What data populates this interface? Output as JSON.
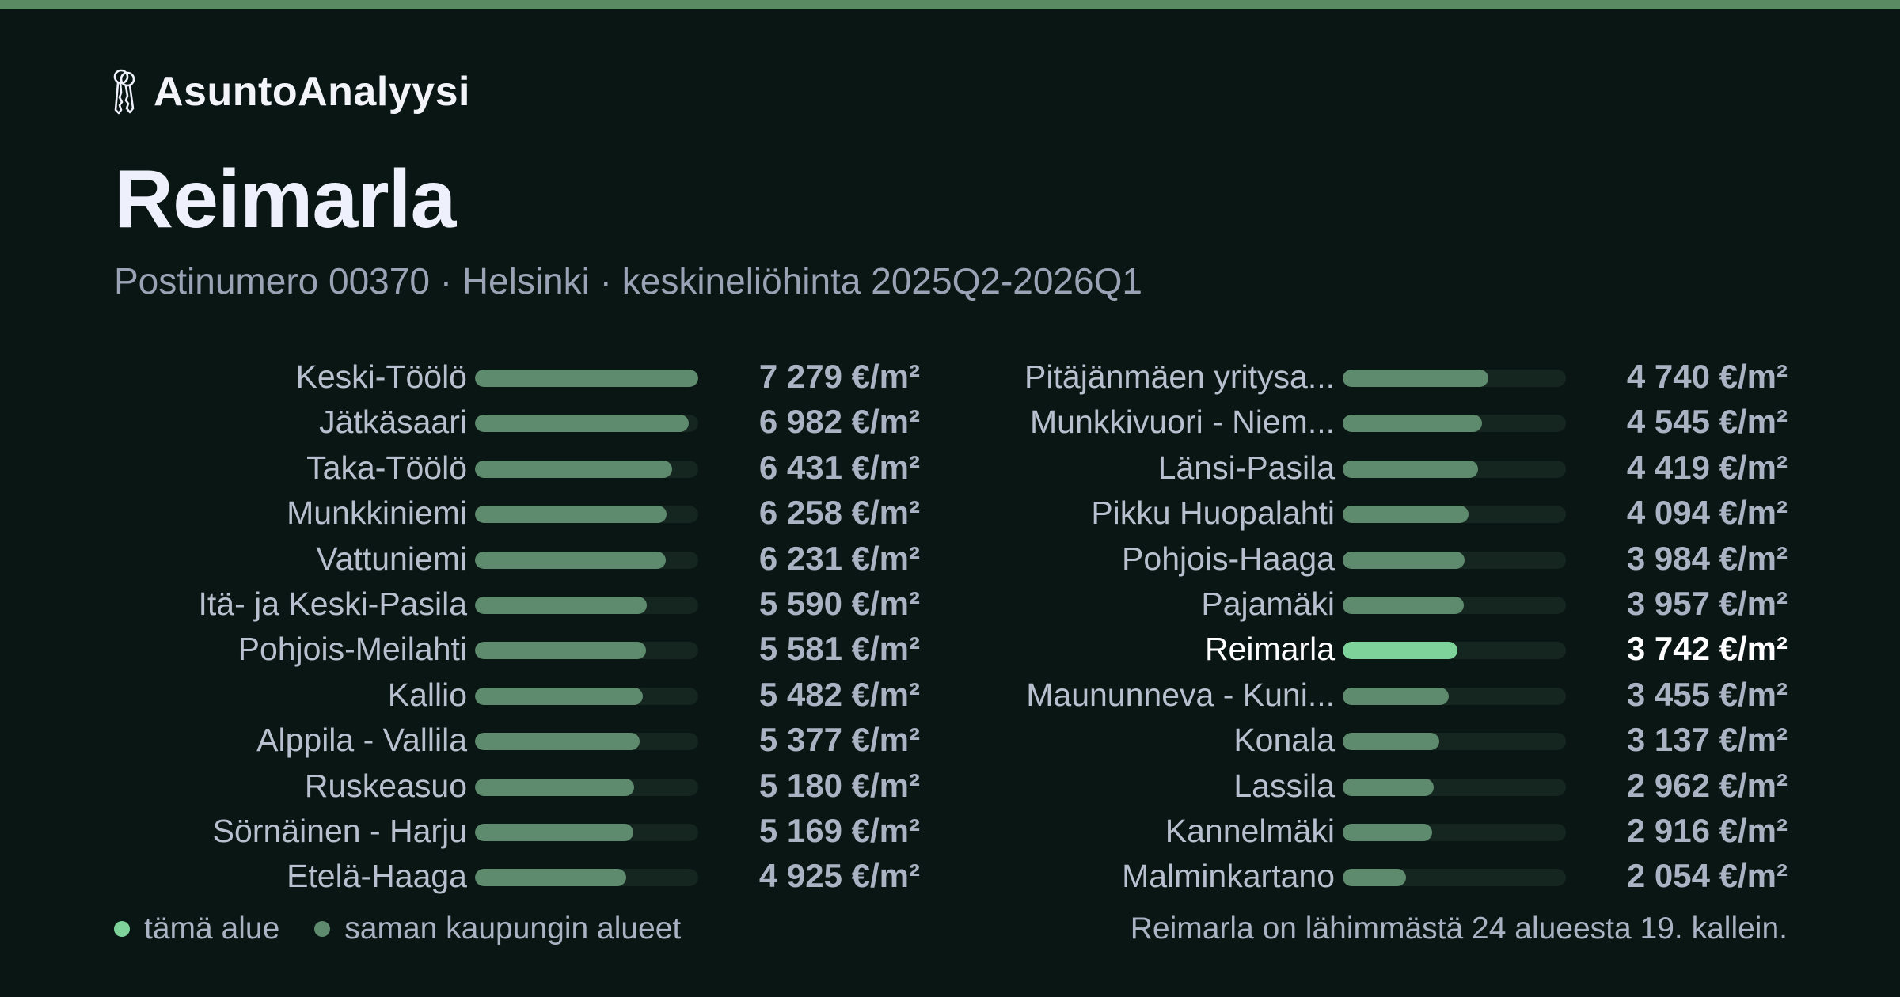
{
  "brand": {
    "name": "AsuntoAnalyysi",
    "icon": "keys-icon"
  },
  "header": {
    "title": "Reimarla",
    "subtitle": "Postinumero 00370 · Helsinki · keskineliöhinta 2025Q2-2026Q1"
  },
  "colors": {
    "background": "#0a1614",
    "accent_bar": "#5a8a62",
    "bar_default": "#5e8a6e",
    "bar_highlight": "#7dd39a",
    "track": "#15251f"
  },
  "legend": {
    "this_area": "tämä alue",
    "this_area_color": "#7dd39a",
    "same_city": "saman kaupungin alueet",
    "same_city_color": "#5e8a6e"
  },
  "footnote": "Reimarla on lähimmästä 24 alueesta 19. kallein.",
  "chart_data": {
    "type": "bar",
    "orientation": "horizontal",
    "unit": "€/m²",
    "xlim": [
      0,
      7279
    ],
    "highlight": "Reimarla",
    "categories": [
      "Keski-Töölö",
      "Jätkäsaari",
      "Taka-Töölö",
      "Munkkiniemi",
      "Vattuniemi",
      "Itä- ja Keski-Pasila",
      "Pohjois-Meilahti",
      "Kallio",
      "Alppila - Vallila",
      "Ruskeasuo",
      "Sörnäinen - Harju",
      "Etelä-Haaga",
      "Pitäjänmäen yritysa...",
      "Munkkivuori - Niem...",
      "Länsi-Pasila",
      "Pikku Huopalahti",
      "Pohjois-Haaga",
      "Pajamäki",
      "Reimarla",
      "Maununneva - Kuni...",
      "Konala",
      "Lassila",
      "Kannelmäki",
      "Malminkartano"
    ],
    "values": [
      7279,
      6982,
      6431,
      6258,
      6231,
      5590,
      5581,
      5482,
      5377,
      5180,
      5169,
      4925,
      4740,
      4545,
      4419,
      4094,
      3984,
      3957,
      3742,
      3455,
      3137,
      2962,
      2916,
      2054
    ],
    "labels": [
      "7 279 €/m²",
      "6 982 €/m²",
      "6 431 €/m²",
      "6 258 €/m²",
      "6 231 €/m²",
      "5 590 €/m²",
      "5 581 €/m²",
      "5 482 €/m²",
      "5 377 €/m²",
      "5 180 €/m²",
      "5 169 €/m²",
      "4 925 €/m²",
      "4 740 €/m²",
      "4 545 €/m²",
      "4 419 €/m²",
      "4 094 €/m²",
      "3 984 €/m²",
      "3 957 €/m²",
      "3 742 €/m²",
      "3 455 €/m²",
      "3 137 €/m²",
      "2 962 €/m²",
      "2 916 €/m²",
      "2 054 €/m²"
    ]
  }
}
